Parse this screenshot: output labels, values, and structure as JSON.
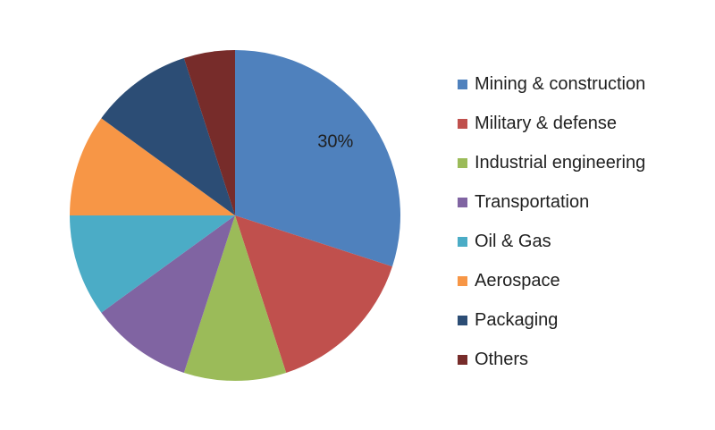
{
  "chart_data": {
    "type": "pie",
    "start_angle_deg": 0,
    "direction": "clockwise",
    "legend_position": "right",
    "data_labels": [
      {
        "category": "Mining & construction",
        "text": "30%"
      }
    ],
    "slices": [
      {
        "label": "Mining & construction",
        "value": 30,
        "color": "#4f81bd"
      },
      {
        "label": "Military & defense",
        "value": 15,
        "color": "#c0504d"
      },
      {
        "label": "Industrial engineering",
        "value": 10,
        "color": "#9bbb59"
      },
      {
        "label": "Transportation",
        "value": 10,
        "color": "#8064a2"
      },
      {
        "label": "Oil & Gas",
        "value": 10,
        "color": "#4bacc6"
      },
      {
        "label": "Aerospace",
        "value": 10,
        "color": "#f79646"
      },
      {
        "label": "Packaging",
        "value": 10,
        "color": "#2c4d75"
      },
      {
        "label": "Others",
        "value": 5,
        "color": "#772c2a"
      }
    ]
  }
}
